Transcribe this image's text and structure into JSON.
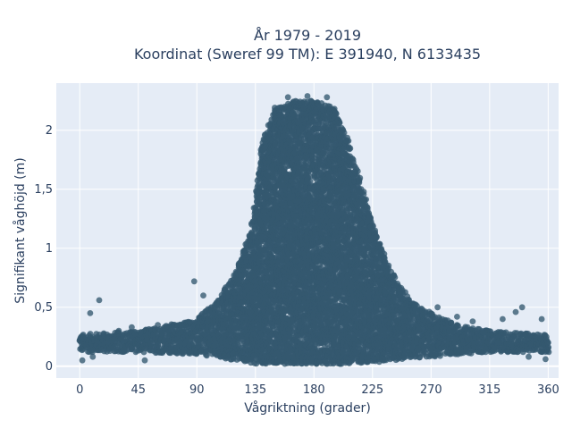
{
  "chart_data": {
    "type": "scatter",
    "title": "År 1979 - 2019",
    "subtitle": "Koordinat (Sweref 99 TM): E 391940, N 6133435",
    "xlabel": "Vågriktning (grader)",
    "ylabel": "Signifikant våghöjd (m)",
    "xlim": [
      -18,
      368
    ],
    "ylim": [
      -0.1,
      2.4
    ],
    "x_ticks": [
      0,
      45,
      90,
      135,
      180,
      225,
      270,
      315,
      360
    ],
    "y_ticks": [
      0,
      0.5,
      1,
      1.5,
      2
    ],
    "y_tick_labels": [
      "0",
      "0,5",
      "1",
      "1,5",
      "2"
    ],
    "grid": true,
    "legend": "none",
    "marker_color": "#34586f",
    "plot_background": "#e5ecf6",
    "envelope": {
      "x": [
        0,
        45,
        90,
        105,
        120,
        130,
        135,
        140,
        150,
        165,
        180,
        195,
        205,
        215,
        225,
        240,
        255,
        270,
        290,
        315,
        340,
        360
      ],
      "upper": [
        0.27,
        0.3,
        0.4,
        0.55,
        0.8,
        1.1,
        1.4,
        1.9,
        2.2,
        2.25,
        2.25,
        2.2,
        1.95,
        1.6,
        1.2,
        0.8,
        0.55,
        0.45,
        0.35,
        0.3,
        0.28,
        0.27
      ],
      "lower": [
        0.12,
        0.12,
        0.1,
        0.08,
        0.05,
        0.03,
        0.02,
        0.02,
        0.02,
        0.02,
        0.02,
        0.02,
        0.02,
        0.02,
        0.03,
        0.05,
        0.07,
        0.08,
        0.1,
        0.12,
        0.12,
        0.12
      ]
    },
    "outliers": [
      {
        "x": 15,
        "y": 0.56
      },
      {
        "x": 8,
        "y": 0.45
      },
      {
        "x": 40,
        "y": 0.33
      },
      {
        "x": 47,
        "y": 0.29
      },
      {
        "x": 88,
        "y": 0.72
      },
      {
        "x": 95,
        "y": 0.6
      },
      {
        "x": 100,
        "y": 0.45
      },
      {
        "x": 335,
        "y": 0.46
      },
      {
        "x": 340,
        "y": 0.5
      },
      {
        "x": 355,
        "y": 0.4
      },
      {
        "x": 302,
        "y": 0.38
      },
      {
        "x": 275,
        "y": 0.5
      },
      {
        "x": 290,
        "y": 0.42
      },
      {
        "x": 325,
        "y": 0.4
      },
      {
        "x": 30,
        "y": 0.3
      },
      {
        "x": 60,
        "y": 0.35
      },
      {
        "x": 2,
        "y": 0.05
      },
      {
        "x": 10,
        "y": 0.08
      },
      {
        "x": 50,
        "y": 0.05
      },
      {
        "x": 345,
        "y": 0.08
      },
      {
        "x": 358,
        "y": 0.06
      },
      {
        "x": 160,
        "y": 2.28
      },
      {
        "x": 190,
        "y": 2.28
      },
      {
        "x": 175,
        "y": 2.29
      }
    ]
  }
}
